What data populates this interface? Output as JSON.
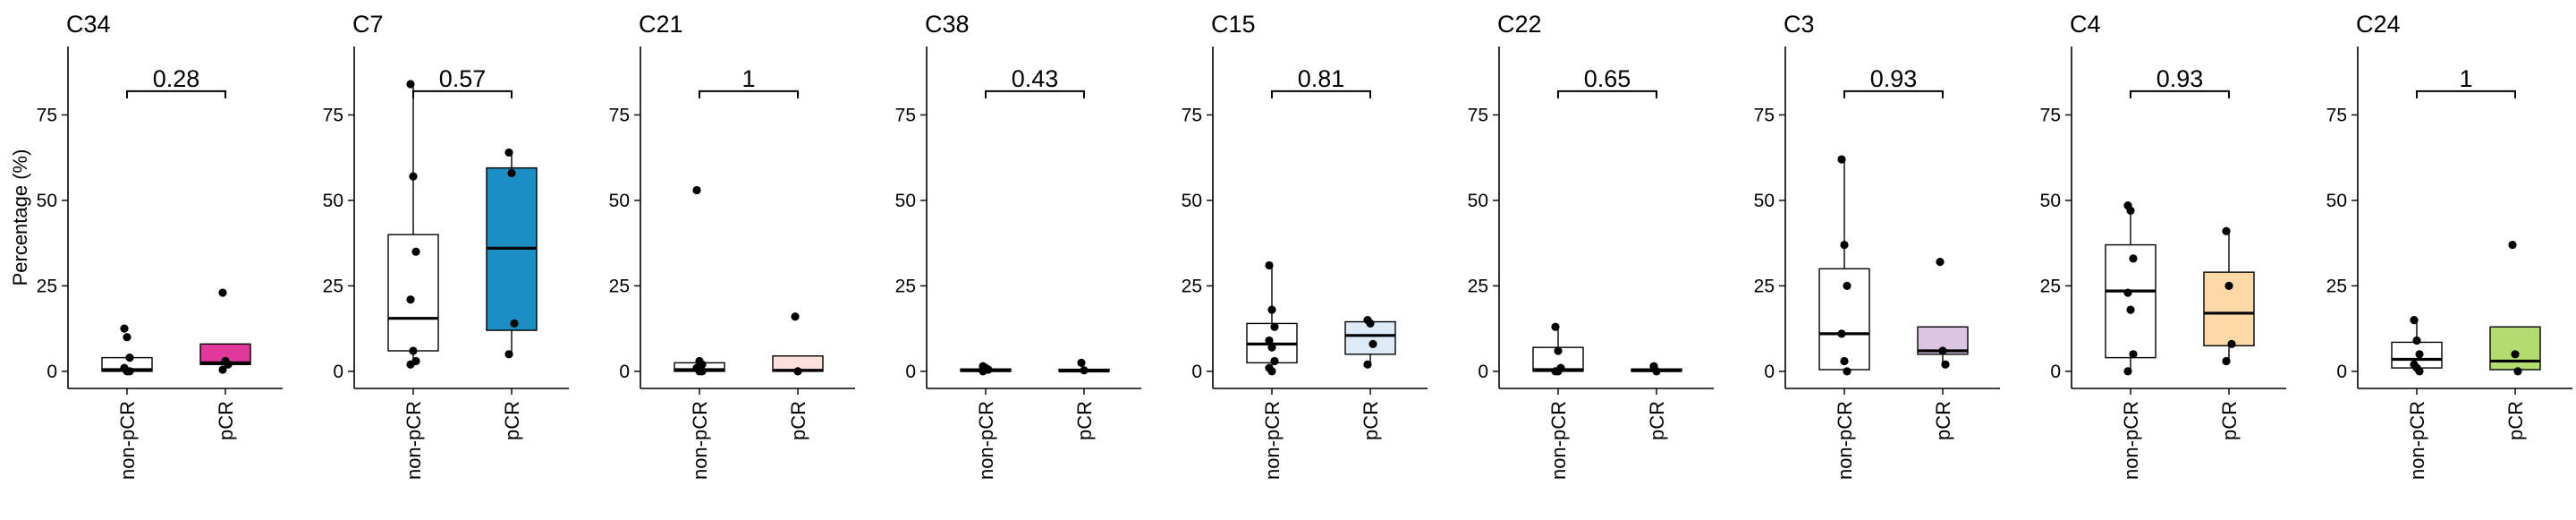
{
  "ylabel": "Percentage (%)",
  "chart_data": [
    {
      "type": "box",
      "title": "C34",
      "color": "#ffffff",
      "ylabel": "Percentage (%)",
      "ylim": [
        -5,
        95
      ],
      "yticks": [
        0,
        25,
        50,
        75
      ],
      "categories": [
        "non-pCR",
        "pCR"
      ],
      "boxes": [
        {
          "category": "non-pCR",
          "fill": "#ffffff",
          "min": 0,
          "q1": 0,
          "median": 0.5,
          "q3": 4,
          "max": 4
        },
        {
          "category": "pCR",
          "fill": "#e0389b",
          "min": 1,
          "q1": 2,
          "median": 2.5,
          "q3": 8,
          "max": 8
        }
      ],
      "points": {
        "non-pCR": [
          12.5,
          10,
          4,
          1,
          0,
          0
        ],
        "pCR": [
          23,
          3,
          2,
          0.5
        ]
      },
      "pvalue": "0.28"
    },
    {
      "type": "box",
      "title": "C7",
      "color": "#1b8ec4",
      "ylim": [
        -5,
        95
      ],
      "yticks": [
        0,
        25,
        50,
        75
      ],
      "categories": [
        "non-pCR",
        "pCR"
      ],
      "boxes": [
        {
          "category": "non-pCR",
          "fill": "#ffffff",
          "min": 2,
          "q1": 6,
          "median": 15.5,
          "q3": 40,
          "max": 84
        },
        {
          "category": "pCR",
          "fill": "#1b8ec4",
          "min": 5,
          "q1": 12,
          "median": 36,
          "q3": 59.5,
          "max": 64
        }
      ],
      "points": {
        "non-pCR": [
          84,
          57,
          35,
          21,
          6,
          3,
          2
        ],
        "pCR": [
          64,
          58,
          14,
          5
        ]
      },
      "pvalue": "0.57"
    },
    {
      "type": "box",
      "title": "C21",
      "color": "#fde0dd",
      "ylim": [
        -5,
        95
      ],
      "yticks": [
        0,
        25,
        50,
        75
      ],
      "categories": [
        "non-pCR",
        "pCR"
      ],
      "boxes": [
        {
          "category": "non-pCR",
          "fill": "#ffffff",
          "min": 0,
          "q1": 0,
          "median": 0.5,
          "q3": 2.5,
          "max": 3
        },
        {
          "category": "pCR",
          "fill": "#fde0dd",
          "min": 0,
          "q1": 0,
          "median": 0.3,
          "q3": 4.5,
          "max": 4.5
        }
      ],
      "points": {
        "non-pCR": [
          53,
          3,
          2,
          1,
          0,
          0
        ],
        "pCR": [
          16,
          0
        ]
      },
      "pvalue": "1"
    },
    {
      "type": "box",
      "title": "C38",
      "color": "#d9d9d9",
      "ylim": [
        -5,
        95
      ],
      "yticks": [
        0,
        25,
        50,
        75
      ],
      "categories": [
        "non-pCR",
        "pCR"
      ],
      "boxes": [
        {
          "category": "non-pCR",
          "fill": "#ffffff",
          "min": 0,
          "q1": 0,
          "median": 0.2,
          "q3": 0.7,
          "max": 1
        },
        {
          "category": "pCR",
          "fill": "#d9d9d9",
          "min": 0,
          "q1": 0,
          "median": 0.1,
          "q3": 0.6,
          "max": 1
        }
      ],
      "points": {
        "non-pCR": [
          1.5,
          1,
          0.5,
          0
        ],
        "pCR": [
          2.5,
          0.3
        ]
      },
      "pvalue": "0.43"
    },
    {
      "type": "box",
      "title": "C15",
      "color": "#deebf7",
      "ylim": [
        -5,
        95
      ],
      "yticks": [
        0,
        25,
        50,
        75
      ],
      "categories": [
        "non-pCR",
        "pCR"
      ],
      "boxes": [
        {
          "category": "non-pCR",
          "fill": "#ffffff",
          "min": 0,
          "q1": 2.5,
          "median": 8,
          "q3": 14,
          "max": 31
        },
        {
          "category": "pCR",
          "fill": "#deebf7",
          "min": 2,
          "q1": 5,
          "median": 10.5,
          "q3": 14.5,
          "max": 15
        }
      ],
      "points": {
        "non-pCR": [
          31,
          18,
          13,
          9,
          7,
          3,
          1,
          0
        ],
        "pCR": [
          15,
          14,
          8,
          2
        ]
      },
      "pvalue": "0.81"
    },
    {
      "type": "box",
      "title": "C22",
      "color": "#e6e6e6",
      "ylim": [
        -5,
        95
      ],
      "yticks": [
        0,
        25,
        50,
        75
      ],
      "categories": [
        "non-pCR",
        "pCR"
      ],
      "boxes": [
        {
          "category": "non-pCR",
          "fill": "#ffffff",
          "min": 0,
          "q1": 0,
          "median": 0.5,
          "q3": 7,
          "max": 13
        },
        {
          "category": "pCR",
          "fill": "#e6e6e6",
          "min": 0,
          "q1": 0,
          "median": 0.2,
          "q3": 0.7,
          "max": 1
        }
      ],
      "points": {
        "non-pCR": [
          13,
          6,
          1,
          0,
          0
        ],
        "pCR": [
          1.5,
          0
        ]
      },
      "pvalue": "0.65"
    },
    {
      "type": "box",
      "title": "C3",
      "color": "#dcc5e4",
      "ylim": [
        -5,
        95
      ],
      "yticks": [
        0,
        25,
        50,
        75
      ],
      "categories": [
        "non-pCR",
        "pCR"
      ],
      "boxes": [
        {
          "category": "non-pCR",
          "fill": "#ffffff",
          "min": 0,
          "q1": 0.5,
          "median": 11,
          "q3": 30,
          "max": 62
        },
        {
          "category": "pCR",
          "fill": "#dcc5e4",
          "min": 2,
          "q1": 5,
          "median": 6,
          "q3": 13,
          "max": 13
        }
      ],
      "points": {
        "non-pCR": [
          62,
          37,
          25,
          11,
          3,
          0
        ],
        "pCR": [
          32,
          6,
          2
        ]
      },
      "pvalue": "0.93"
    },
    {
      "type": "box",
      "title": "C4",
      "color": "#fdd9a8",
      "ylim": [
        -5,
        95
      ],
      "yticks": [
        0,
        25,
        50,
        75
      ],
      "categories": [
        "non-pCR",
        "pCR"
      ],
      "boxes": [
        {
          "category": "non-pCR",
          "fill": "#ffffff",
          "min": 0,
          "q1": 4,
          "median": 23.5,
          "q3": 37,
          "max": 48
        },
        {
          "category": "pCR",
          "fill": "#fdd9a8",
          "min": 3,
          "q1": 7.5,
          "median": 17,
          "q3": 29,
          "max": 41
        }
      ],
      "points": {
        "non-pCR": [
          48.5,
          47,
          33,
          23,
          18,
          5,
          0
        ],
        "pCR": [
          41,
          25,
          8,
          3
        ]
      },
      "pvalue": "0.93"
    },
    {
      "type": "box",
      "title": "C24",
      "color": "#b2dc70",
      "ylim": [
        -5,
        95
      ],
      "yticks": [
        0,
        25,
        50,
        75
      ],
      "categories": [
        "non-pCR",
        "pCR"
      ],
      "boxes": [
        {
          "category": "non-pCR",
          "fill": "#ffffff",
          "min": 0,
          "q1": 1,
          "median": 3.5,
          "q3": 8.5,
          "max": 15
        },
        {
          "category": "pCR",
          "fill": "#b2dc70",
          "min": 0,
          "q1": 0.5,
          "median": 3,
          "q3": 13,
          "max": 13
        }
      ],
      "points": {
        "non-pCR": [
          15,
          9,
          5,
          2,
          1,
          0
        ],
        "pCR": [
          37,
          5,
          0
        ]
      },
      "pvalue": "1"
    }
  ]
}
